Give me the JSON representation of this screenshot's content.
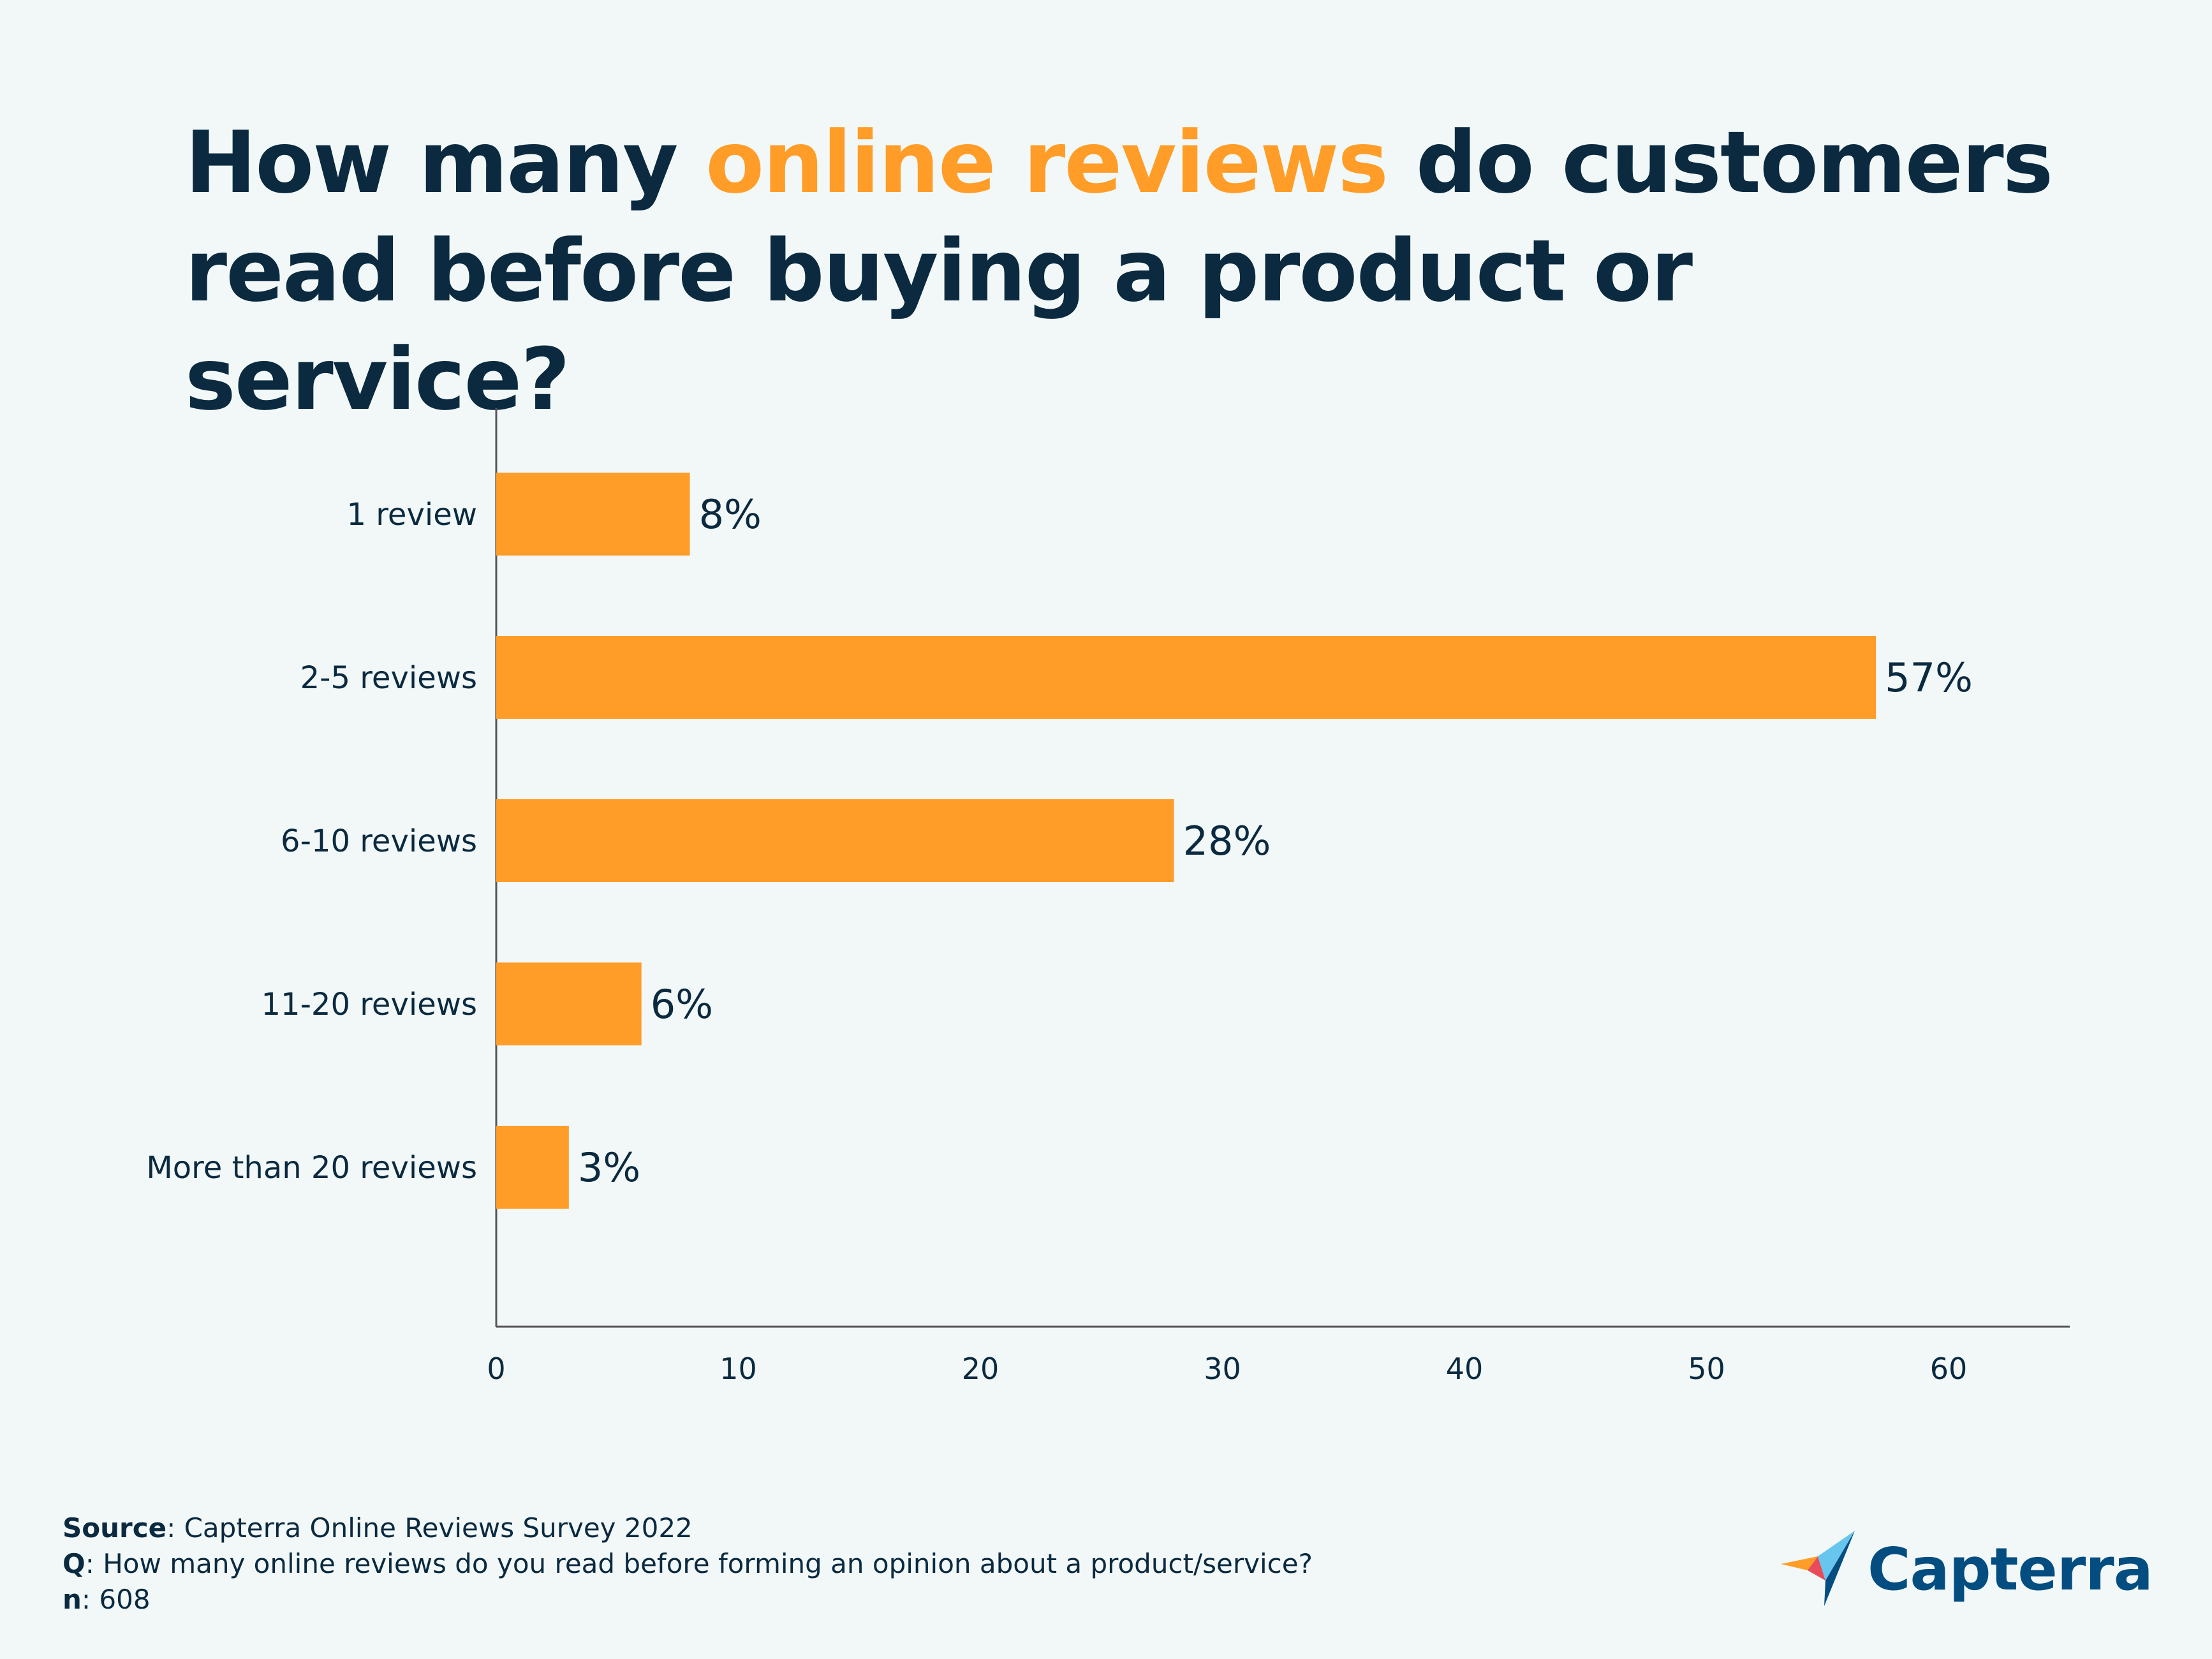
{
  "title": {
    "part1": "How many ",
    "highlight": "online reviews",
    "part2": " do customers read before buying a product or service?"
  },
  "chart_data": {
    "type": "bar",
    "orientation": "horizontal",
    "categories": [
      "1 review",
      "2-5 reviews",
      "6-10 reviews",
      "11-20 reviews",
      "More than 20 reviews"
    ],
    "values": [
      8,
      57,
      28,
      6,
      3
    ],
    "value_labels": [
      "8%",
      "57%",
      "28%",
      "6%",
      "3%"
    ],
    "xticks": [
      0,
      10,
      20,
      30,
      40,
      50,
      60
    ],
    "xlim": [
      0,
      65
    ],
    "title": "How many online reviews do customers read before buying a product or service?",
    "xlabel": "",
    "ylabel": "",
    "grid": false,
    "bar_color": "#ff9d28"
  },
  "footer": {
    "source_label": "Source",
    "source_text": ": Capterra Online Reviews Survey 2022",
    "q_label": "Q",
    "q_text": ": How many online reviews do you read before forming an opinion about a product/service?",
    "n_label": "n",
    "n_text": ": 608"
  },
  "logo": {
    "icon": "capterra-arrow-icon",
    "text": "Capterra"
  },
  "colors": {
    "background": "#f2f8f8",
    "text": "#0b2a3f",
    "accent": "#ff9d28",
    "logo_blue": "#044d80"
  }
}
